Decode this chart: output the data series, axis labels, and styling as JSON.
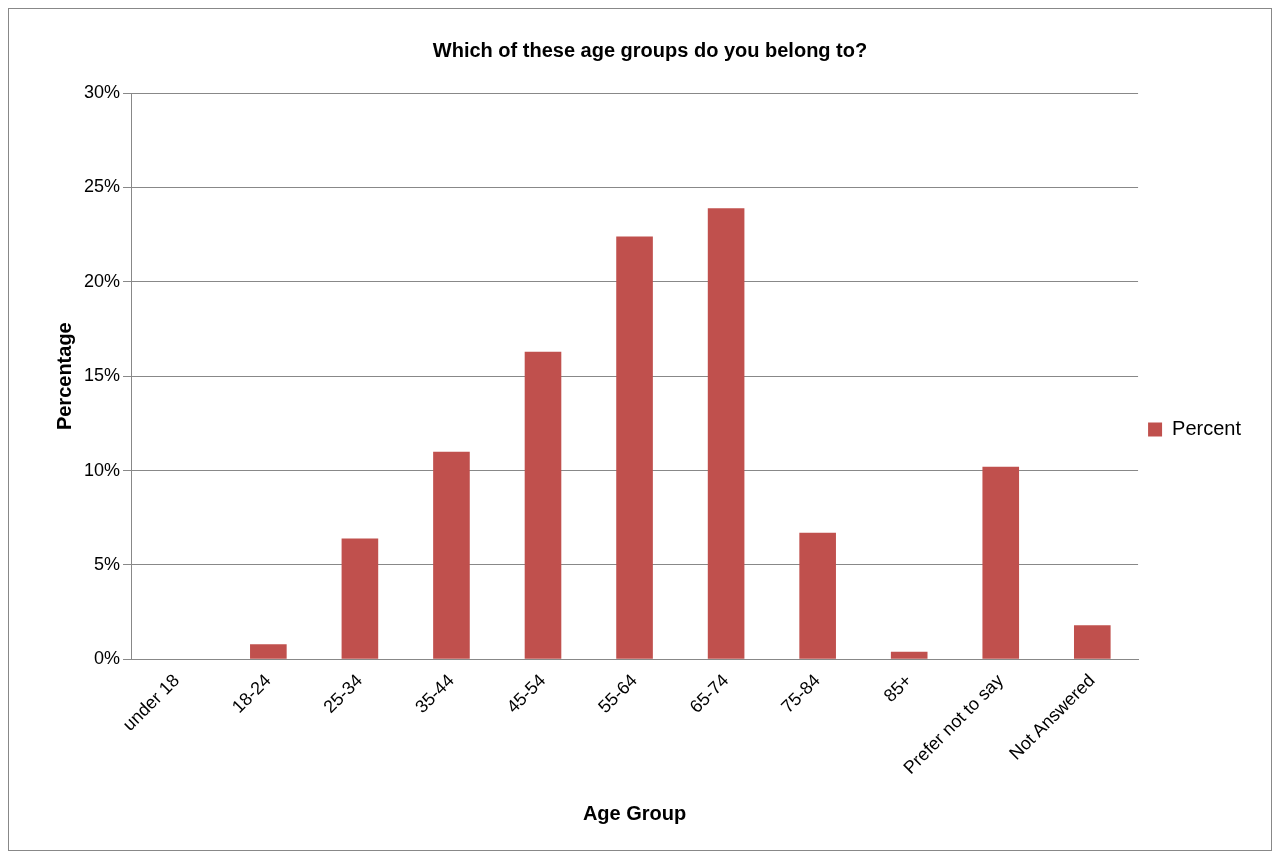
{
  "chart_data": {
    "type": "bar",
    "title": "Which of these age groups do you belong to?",
    "xlabel": "Age Group",
    "ylabel": "Percentage",
    "categories": [
      "under 18",
      "18-24",
      "25-34",
      "35-44",
      "45-54",
      "55-64",
      "65-74",
      "75-84",
      "85+",
      "Prefer not to say",
      "Not Answered"
    ],
    "series": [
      {
        "name": "Percent",
        "color": "#c0504d",
        "values": [
          0,
          0.8,
          6.4,
          11.0,
          16.3,
          22.4,
          23.9,
          6.7,
          0.4,
          10.2,
          1.8
        ]
      }
    ],
    "ylim": [
      0,
      30
    ],
    "yticks": [
      {
        "value": 0,
        "label": "0%"
      },
      {
        "value": 5,
        "label": "5%"
      },
      {
        "value": 10,
        "label": "10%"
      },
      {
        "value": 15,
        "label": "15%"
      },
      {
        "value": 20,
        "label": "20%"
      },
      {
        "value": 25,
        "label": "25%"
      },
      {
        "value": 30,
        "label": "30%"
      }
    ],
    "grid": "y",
    "legend": "right"
  }
}
